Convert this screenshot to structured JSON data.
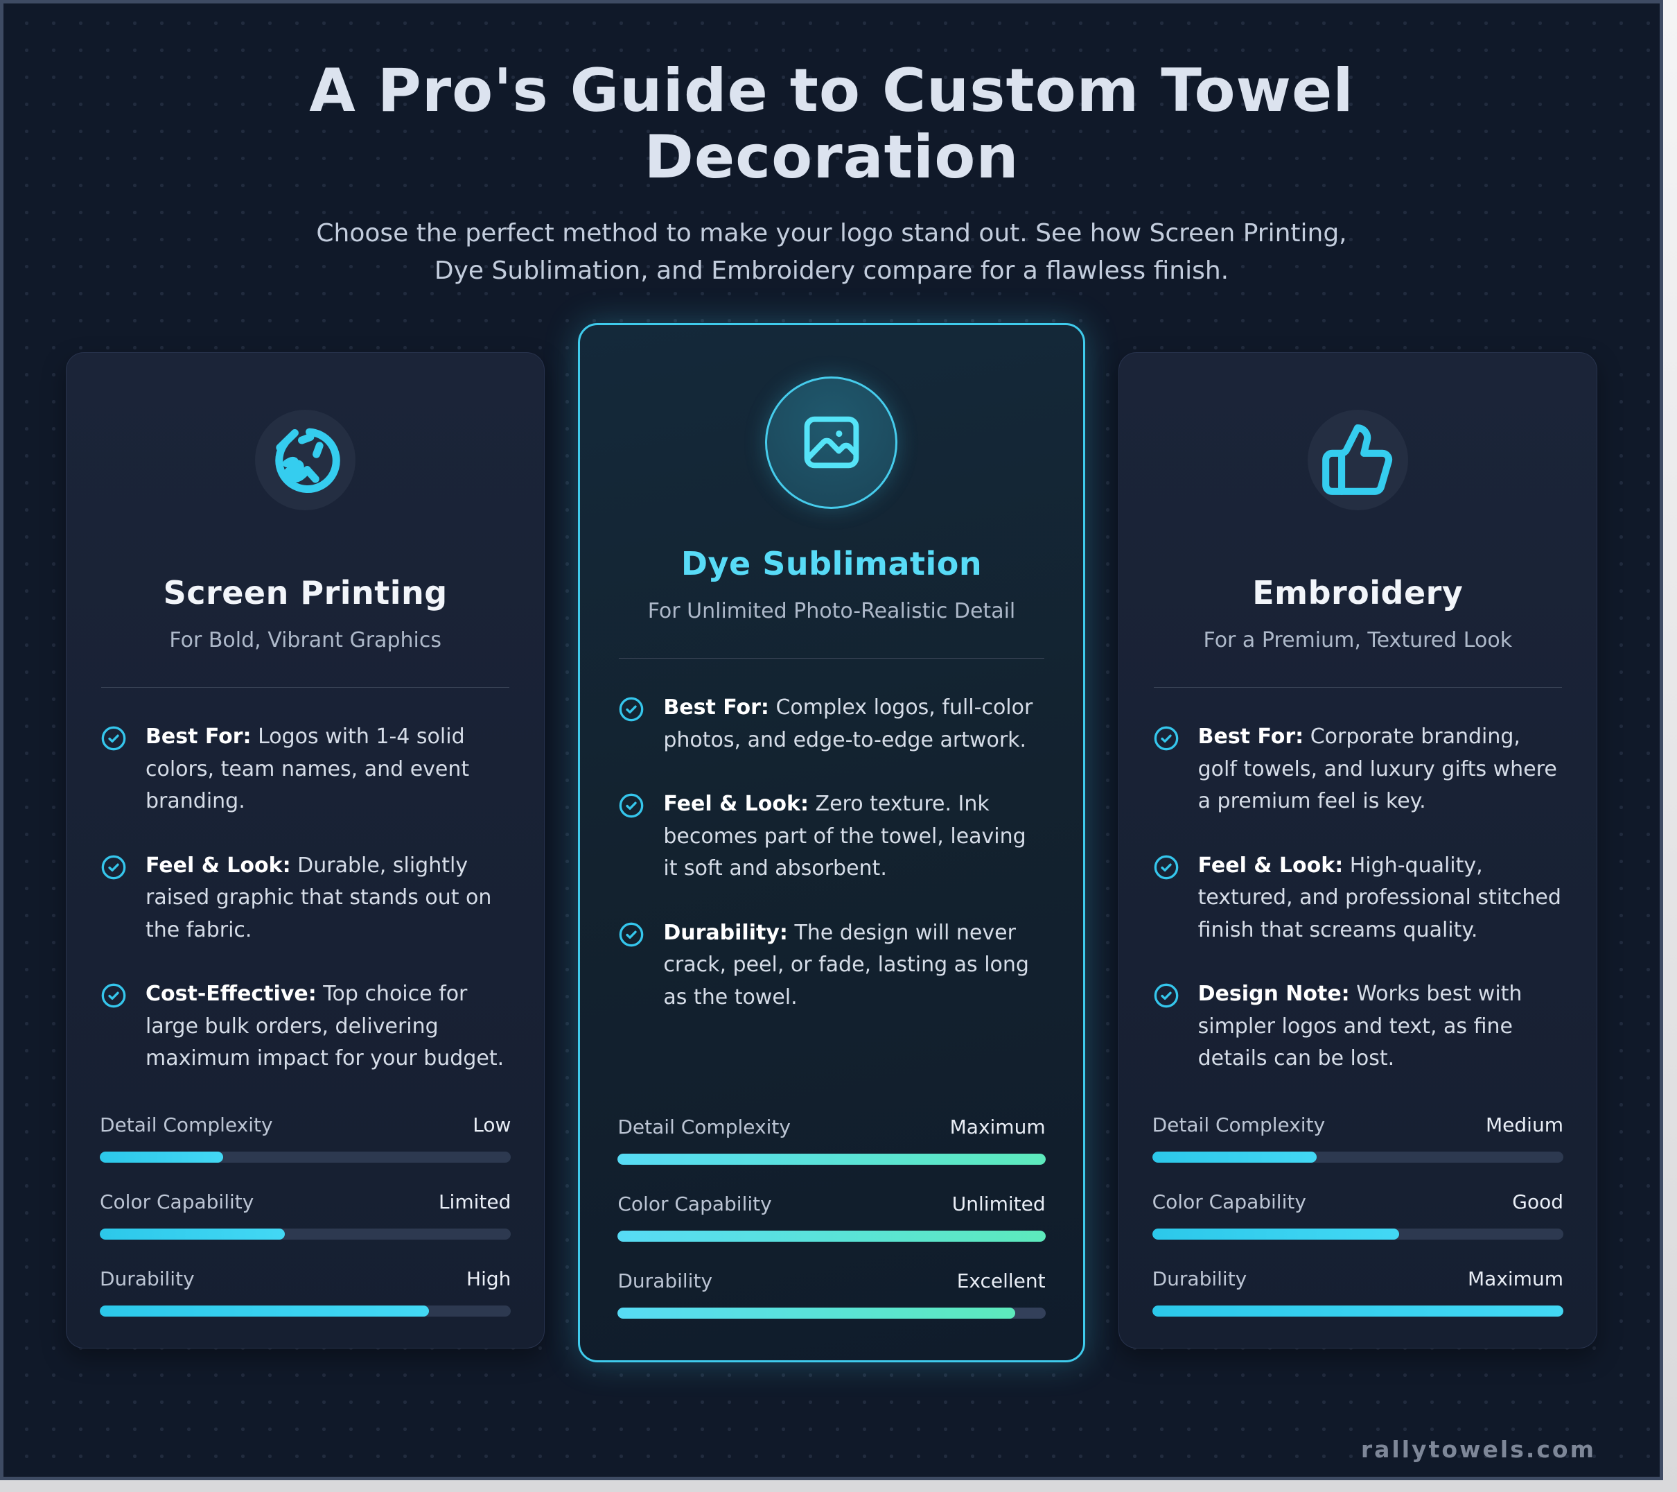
{
  "page": {
    "title": "A Pro's Guide to Custom Towel Decoration",
    "subtitle": "Choose the perfect method to make your logo stand out. See how Screen Printing, Dye Sublimation, and Embroidery compare for a flawless finish.",
    "footer": "rallytowels.com",
    "colors": {
      "background": "#101929",
      "card_background": "#1a2336",
      "accent_cyan": "#3ecdec",
      "gradient_mint": "#5deabc",
      "featured_border": "#3fcbec",
      "title_text": "#dce3ef",
      "body_text": "#d6dde8"
    }
  },
  "cards": [
    {
      "icon": "sketch-scribble-icon",
      "title": "Screen Printing",
      "subtitle": "For Bold, Vibrant Graphics",
      "highlighted": false,
      "bullets": [
        {
          "label": "Best For:",
          "text": "Logos with 1-4 solid colors, team names, and event branding."
        },
        {
          "label": "Feel & Look:",
          "text": "Durable, slightly raised graphic that stands out on the fabric."
        },
        {
          "label": "Cost-Effective:",
          "text": "Top choice for large bulk orders, delivering maximum impact for your budget."
        }
      ],
      "meters": [
        {
          "label": "Detail Complexity",
          "value": "Low",
          "percent": 30
        },
        {
          "label": "Color Capability",
          "value": "Limited",
          "percent": 45
        },
        {
          "label": "Durability",
          "value": "High",
          "percent": 80
        }
      ]
    },
    {
      "icon": "photo-image-icon",
      "title": "Dye Sublimation",
      "subtitle": "For Unlimited Photo-Realistic Detail",
      "highlighted": true,
      "bullets": [
        {
          "label": "Best For:",
          "text": "Complex logos, full-color photos, and edge-to-edge artwork."
        },
        {
          "label": "Feel & Look:",
          "text": "Zero texture. Ink becomes part of the towel, leaving it soft and absorbent."
        },
        {
          "label": "Durability:",
          "text": "The design will never crack, peel, or fade, lasting as long as the towel."
        }
      ],
      "meters": [
        {
          "label": "Detail Complexity",
          "value": "Maximum",
          "percent": 100
        },
        {
          "label": "Color Capability",
          "value": "Unlimited",
          "percent": 100
        },
        {
          "label": "Durability",
          "value": "Excellent",
          "percent": 93
        }
      ]
    },
    {
      "icon": "thumbs-up-stitch-icon",
      "title": "Embroidery",
      "subtitle": "For a Premium, Textured Look",
      "highlighted": false,
      "bullets": [
        {
          "label": "Best For:",
          "text": "Corporate branding, golf towels, and luxury gifts where a premium feel is key."
        },
        {
          "label": "Feel & Look:",
          "text": "High-quality, textured, and professional stitched finish that screams quality."
        },
        {
          "label": "Design Note:",
          "text": "Works best with simpler logos and text, as fine details can be lost."
        }
      ],
      "meters": [
        {
          "label": "Detail Complexity",
          "value": "Medium",
          "percent": 40
        },
        {
          "label": "Color Capability",
          "value": "Good",
          "percent": 60
        },
        {
          "label": "Durability",
          "value": "Maximum",
          "percent": 100
        }
      ]
    }
  ]
}
